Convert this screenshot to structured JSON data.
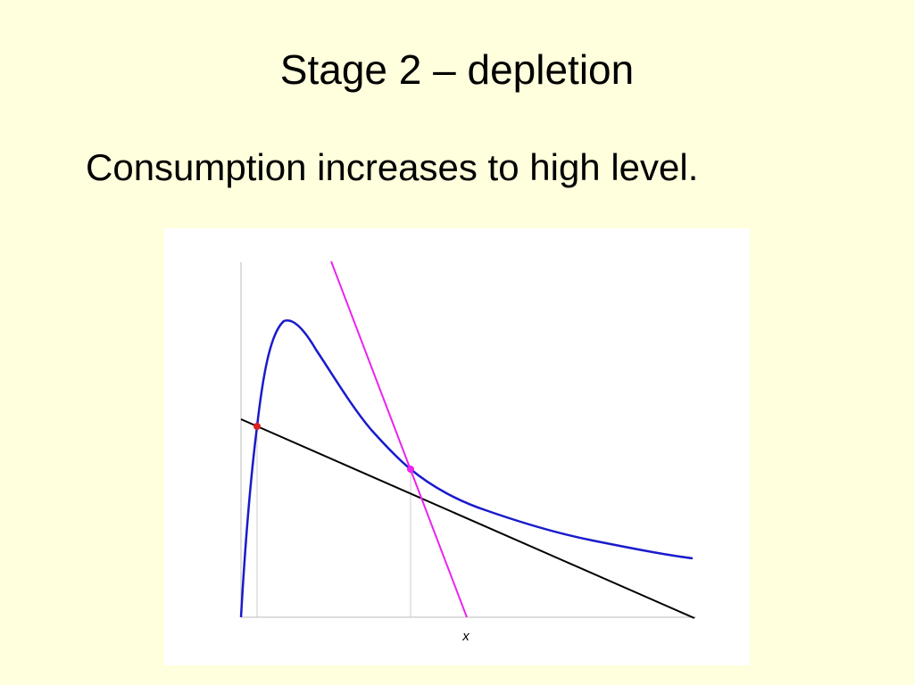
{
  "slide": {
    "title": "Stage 2 – depletion",
    "bullet": "Consumption increases to high level.",
    "background_color": "#FFFFDD"
  },
  "diagram": {
    "x_axis_label": "x",
    "colors": {
      "growth_curve": "#1A1ACC",
      "harvest_line_low": "#000000",
      "harvest_line_high": "#EE22EE",
      "equilibrium_low": "#DD2222",
      "equilibrium_high": "#EE22EE",
      "axis": "#BBBBBB"
    }
  }
}
